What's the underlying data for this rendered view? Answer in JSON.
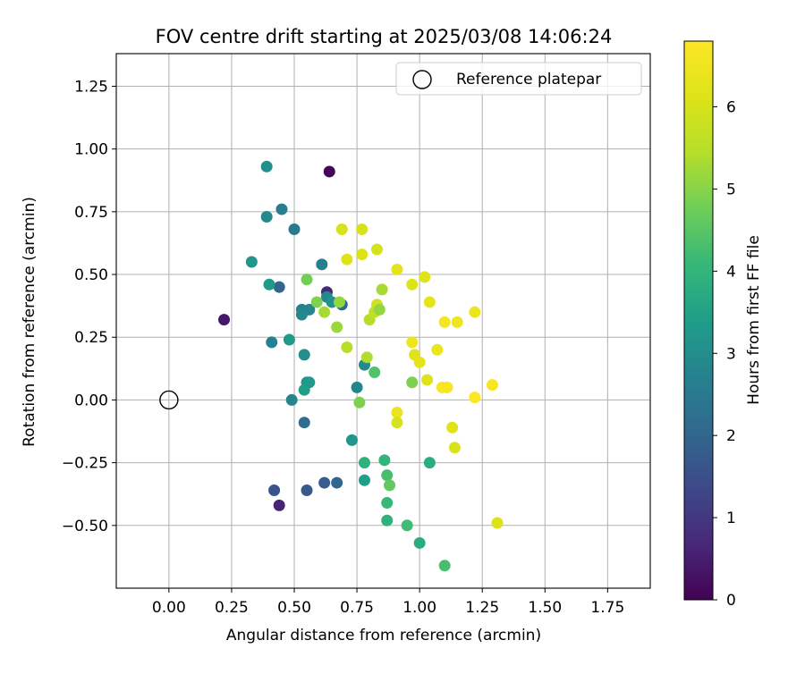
{
  "chart_data": {
    "type": "scatter",
    "title": "FOV centre drift starting at 2025/03/08 14:06:24",
    "xlabel": "Angular distance from reference (arcmin)",
    "ylabel": "Rotation from reference (arcmin)",
    "xlim": [
      -0.21,
      1.92
    ],
    "ylim": [
      -0.75,
      1.38
    ],
    "xticks": [
      0.0,
      0.25,
      0.5,
      0.75,
      1.0,
      1.25,
      1.5,
      1.75
    ],
    "xtick_labels": [
      "0.00",
      "0.25",
      "0.50",
      "0.75",
      "1.00",
      "1.25",
      "1.50",
      "1.75"
    ],
    "yticks": [
      -0.5,
      -0.25,
      0.0,
      0.25,
      0.5,
      0.75,
      1.0,
      1.25
    ],
    "ytick_labels": [
      "−0.50",
      "−0.25",
      "0.00",
      "0.25",
      "0.50",
      "0.75",
      "1.00",
      "1.25"
    ],
    "grid": true,
    "legend": {
      "position": "upper right",
      "entries": [
        {
          "label": "Reference platepar",
          "marker": "open-circle"
        }
      ]
    },
    "reference_point": {
      "x": 0.0,
      "y": 0.0
    },
    "colorbar": {
      "label": "Hours from first FF file",
      "colormap": "viridis",
      "range": [
        0,
        6.8
      ],
      "ticks": [
        0,
        1,
        2,
        3,
        4,
        5,
        6
      ],
      "tick_labels": [
        "0",
        "1",
        "2",
        "3",
        "4",
        "5",
        "6"
      ]
    },
    "points": [
      {
        "x": 0.64,
        "y": 0.91,
        "c": 0.1
      },
      {
        "x": 0.22,
        "y": 0.32,
        "c": 0.4
      },
      {
        "x": 0.44,
        "y": -0.42,
        "c": 0.6
      },
      {
        "x": 0.63,
        "y": 0.43,
        "c": 0.7
      },
      {
        "x": 0.42,
        "y": -0.36,
        "c": 1.6
      },
      {
        "x": 0.55,
        "y": -0.36,
        "c": 1.7
      },
      {
        "x": 0.62,
        "y": -0.33,
        "c": 1.8
      },
      {
        "x": 0.67,
        "y": -0.33,
        "c": 2.0
      },
      {
        "x": 0.44,
        "y": 0.45,
        "c": 2.0
      },
      {
        "x": 0.54,
        "y": -0.09,
        "c": 2.2
      },
      {
        "x": 0.69,
        "y": 0.38,
        "c": 2.0
      },
      {
        "x": 0.45,
        "y": 0.76,
        "c": 2.6
      },
      {
        "x": 0.5,
        "y": 0.68,
        "c": 2.5
      },
      {
        "x": 0.61,
        "y": 0.54,
        "c": 2.6
      },
      {
        "x": 0.39,
        "y": 0.73,
        "c": 2.9
      },
      {
        "x": 0.39,
        "y": 0.93,
        "c": 3.0
      },
      {
        "x": 0.33,
        "y": 0.55,
        "c": 3.2
      },
      {
        "x": 0.41,
        "y": 0.23,
        "c": 2.7
      },
      {
        "x": 0.48,
        "y": 0.24,
        "c": 3.3
      },
      {
        "x": 0.4,
        "y": 0.46,
        "c": 3.3
      },
      {
        "x": 0.49,
        "y": -0.0,
        "c": 2.8
      },
      {
        "x": 0.53,
        "y": 0.36,
        "c": 2.7
      },
      {
        "x": 0.53,
        "y": 0.34,
        "c": 2.9
      },
      {
        "x": 0.56,
        "y": 0.36,
        "c": 2.8
      },
      {
        "x": 0.63,
        "y": 0.41,
        "c": 2.9
      },
      {
        "x": 0.65,
        "y": 0.39,
        "c": 3.1
      },
      {
        "x": 0.54,
        "y": 0.18,
        "c": 3.0
      },
      {
        "x": 0.55,
        "y": 0.07,
        "c": 3.2
      },
      {
        "x": 0.56,
        "y": 0.07,
        "c": 3.3
      },
      {
        "x": 0.54,
        "y": 0.04,
        "c": 3.4
      },
      {
        "x": 0.75,
        "y": 0.05,
        "c": 2.8
      },
      {
        "x": 0.78,
        "y": 0.14,
        "c": 2.9
      },
      {
        "x": 0.73,
        "y": -0.16,
        "c": 3.2
      },
      {
        "x": 0.78,
        "y": -0.32,
        "c": 3.4
      },
      {
        "x": 0.78,
        "y": -0.25,
        "c": 3.9
      },
      {
        "x": 0.82,
        "y": 0.11,
        "c": 4.4
      },
      {
        "x": 0.86,
        "y": -0.24,
        "c": 4.0
      },
      {
        "x": 0.87,
        "y": -0.3,
        "c": 4.3
      },
      {
        "x": 0.87,
        "y": -0.41,
        "c": 4.1
      },
      {
        "x": 0.88,
        "y": -0.34,
        "c": 4.6
      },
      {
        "x": 0.87,
        "y": -0.48,
        "c": 3.9
      },
      {
        "x": 0.95,
        "y": -0.5,
        "c": 4.2
      },
      {
        "x": 1.0,
        "y": -0.57,
        "c": 3.8
      },
      {
        "x": 1.04,
        "y": -0.25,
        "c": 3.8
      },
      {
        "x": 1.1,
        "y": -0.66,
        "c": 4.3
      },
      {
        "x": 0.76,
        "y": -0.01,
        "c": 4.9
      },
      {
        "x": 0.97,
        "y": 0.07,
        "c": 4.9
      },
      {
        "x": 0.55,
        "y": 0.48,
        "c": 4.8
      },
      {
        "x": 0.59,
        "y": 0.39,
        "c": 4.9
      },
      {
        "x": 0.62,
        "y": 0.35,
        "c": 5.3
      },
      {
        "x": 0.67,
        "y": 0.29,
        "c": 5.2
      },
      {
        "x": 0.68,
        "y": 0.39,
        "c": 5.1
      },
      {
        "x": 0.71,
        "y": 0.21,
        "c": 5.5
      },
      {
        "x": 0.79,
        "y": 0.17,
        "c": 5.4
      },
      {
        "x": 0.8,
        "y": 0.32,
        "c": 5.5
      },
      {
        "x": 0.82,
        "y": 0.35,
        "c": 5.7
      },
      {
        "x": 0.83,
        "y": 0.38,
        "c": 5.9
      },
      {
        "x": 0.84,
        "y": 0.36,
        "c": 5.1
      },
      {
        "x": 0.85,
        "y": 0.44,
        "c": 5.3
      },
      {
        "x": 0.69,
        "y": 0.68,
        "c": 6.0
      },
      {
        "x": 0.71,
        "y": 0.56,
        "c": 6.2
      },
      {
        "x": 0.77,
        "y": 0.58,
        "c": 6.1
      },
      {
        "x": 0.77,
        "y": 0.68,
        "c": 6.0
      },
      {
        "x": 0.83,
        "y": 0.6,
        "c": 6.0
      },
      {
        "x": 0.91,
        "y": 0.52,
        "c": 6.3
      },
      {
        "x": 0.97,
        "y": 0.46,
        "c": 6.1
      },
      {
        "x": 1.02,
        "y": 0.49,
        "c": 6.2
      },
      {
        "x": 1.04,
        "y": 0.39,
        "c": 6.3
      },
      {
        "x": 1.1,
        "y": 0.31,
        "c": 6.6
      },
      {
        "x": 1.15,
        "y": 0.31,
        "c": 6.5
      },
      {
        "x": 1.22,
        "y": 0.35,
        "c": 6.4
      },
      {
        "x": 0.97,
        "y": 0.23,
        "c": 6.5
      },
      {
        "x": 1.07,
        "y": 0.2,
        "c": 6.4
      },
      {
        "x": 0.98,
        "y": 0.18,
        "c": 6.2
      },
      {
        "x": 1.0,
        "y": 0.15,
        "c": 6.3
      },
      {
        "x": 1.03,
        "y": 0.08,
        "c": 6.2
      },
      {
        "x": 1.09,
        "y": 0.05,
        "c": 6.7
      },
      {
        "x": 1.11,
        "y": 0.05,
        "c": 6.7
      },
      {
        "x": 1.22,
        "y": 0.01,
        "c": 6.8
      },
      {
        "x": 1.29,
        "y": 0.06,
        "c": 6.7
      },
      {
        "x": 0.91,
        "y": -0.05,
        "c": 6.4
      },
      {
        "x": 0.91,
        "y": -0.09,
        "c": 6.0
      },
      {
        "x": 1.13,
        "y": -0.11,
        "c": 6.2
      },
      {
        "x": 1.14,
        "y": -0.19,
        "c": 6.0
      },
      {
        "x": 1.31,
        "y": -0.49,
        "c": 6.1
      }
    ]
  }
}
